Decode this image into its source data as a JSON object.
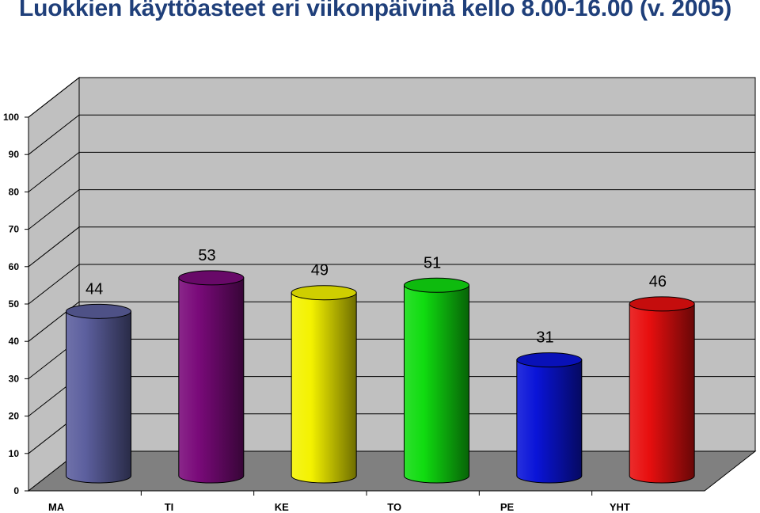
{
  "page": {
    "title": "Luokkien käyttöasteet eri viikonpäivinä kello 8.00-16.00 (v. 2005)"
  },
  "chart_data": {
    "type": "bar",
    "style": "3d-cylinder",
    "title": "Luokkien käyttöasteet eri viikonpäivinä kello 8.00-16.00 (v. 2005)",
    "categories": [
      "MA",
      "TI",
      "KE",
      "TO",
      "PE",
      "YHT"
    ],
    "values": [
      44,
      53,
      49,
      51,
      31,
      46
    ],
    "data_labels": [
      "44",
      "53",
      "49",
      "51",
      "31",
      "46"
    ],
    "colors": [
      "#5c5f9e",
      "#7a0a7a",
      "#f4f200",
      "#10dc10",
      "#0a14d8",
      "#e80f0f"
    ],
    "ylim": [
      0,
      100
    ],
    "yticks": [
      "0",
      "10",
      "20",
      "30",
      "40",
      "50",
      "60",
      "70",
      "80",
      "90",
      "100"
    ],
    "xlabel": "",
    "ylabel": "",
    "grid": true,
    "legend": "none"
  }
}
